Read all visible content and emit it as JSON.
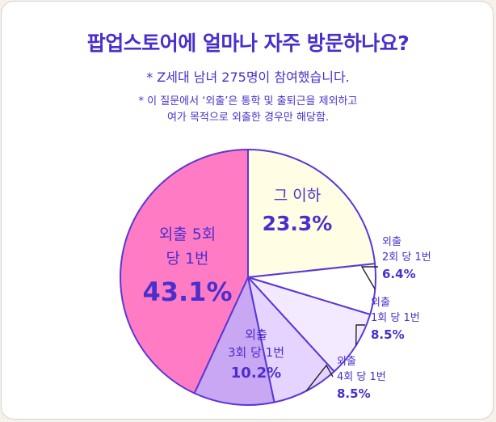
{
  "header": {
    "title": "팝업스토어에 얼마나 자주 방문하나요?",
    "subtitle": "* Z세대 남녀 275명이 참여했습니다.",
    "note_line1": "* 이 질문에서 ‘외출’은 통학 및 출퇴근을 제외하고",
    "note_line2": "여가 목적으로 외출한 경우만 해당함."
  },
  "colors": {
    "accent": "#4b2fcc",
    "outline": "#5b37d6"
  },
  "chart_data": {
    "type": "pie",
    "title": "팝업스토어에 얼마나 자주 방문하나요?",
    "unit": "%",
    "slices": [
      {
        "label": "그 이하",
        "value": 23.3,
        "value_label": "23.3%",
        "color": "#fffde3"
      },
      {
        "label": "외출 2회 당 1번",
        "value": 6.4,
        "value_label": "6.4%",
        "color": "#ffffff"
      },
      {
        "label": "외출 1회 당 1번",
        "value": 8.5,
        "value_label": "8.5%",
        "color": "#f3eaff"
      },
      {
        "label": "외출 4회 당 1번",
        "value": 8.5,
        "value_label": "8.5%",
        "color": "#e5d4ff"
      },
      {
        "label": "외출 3회 당 1번",
        "value": 10.2,
        "value_label": "10.2%",
        "color": "#c9a7f3"
      },
      {
        "label": "외출 5회 당 1번",
        "value": 43.1,
        "value_label": "43.1%",
        "color": "#ff7cc4"
      }
    ]
  }
}
